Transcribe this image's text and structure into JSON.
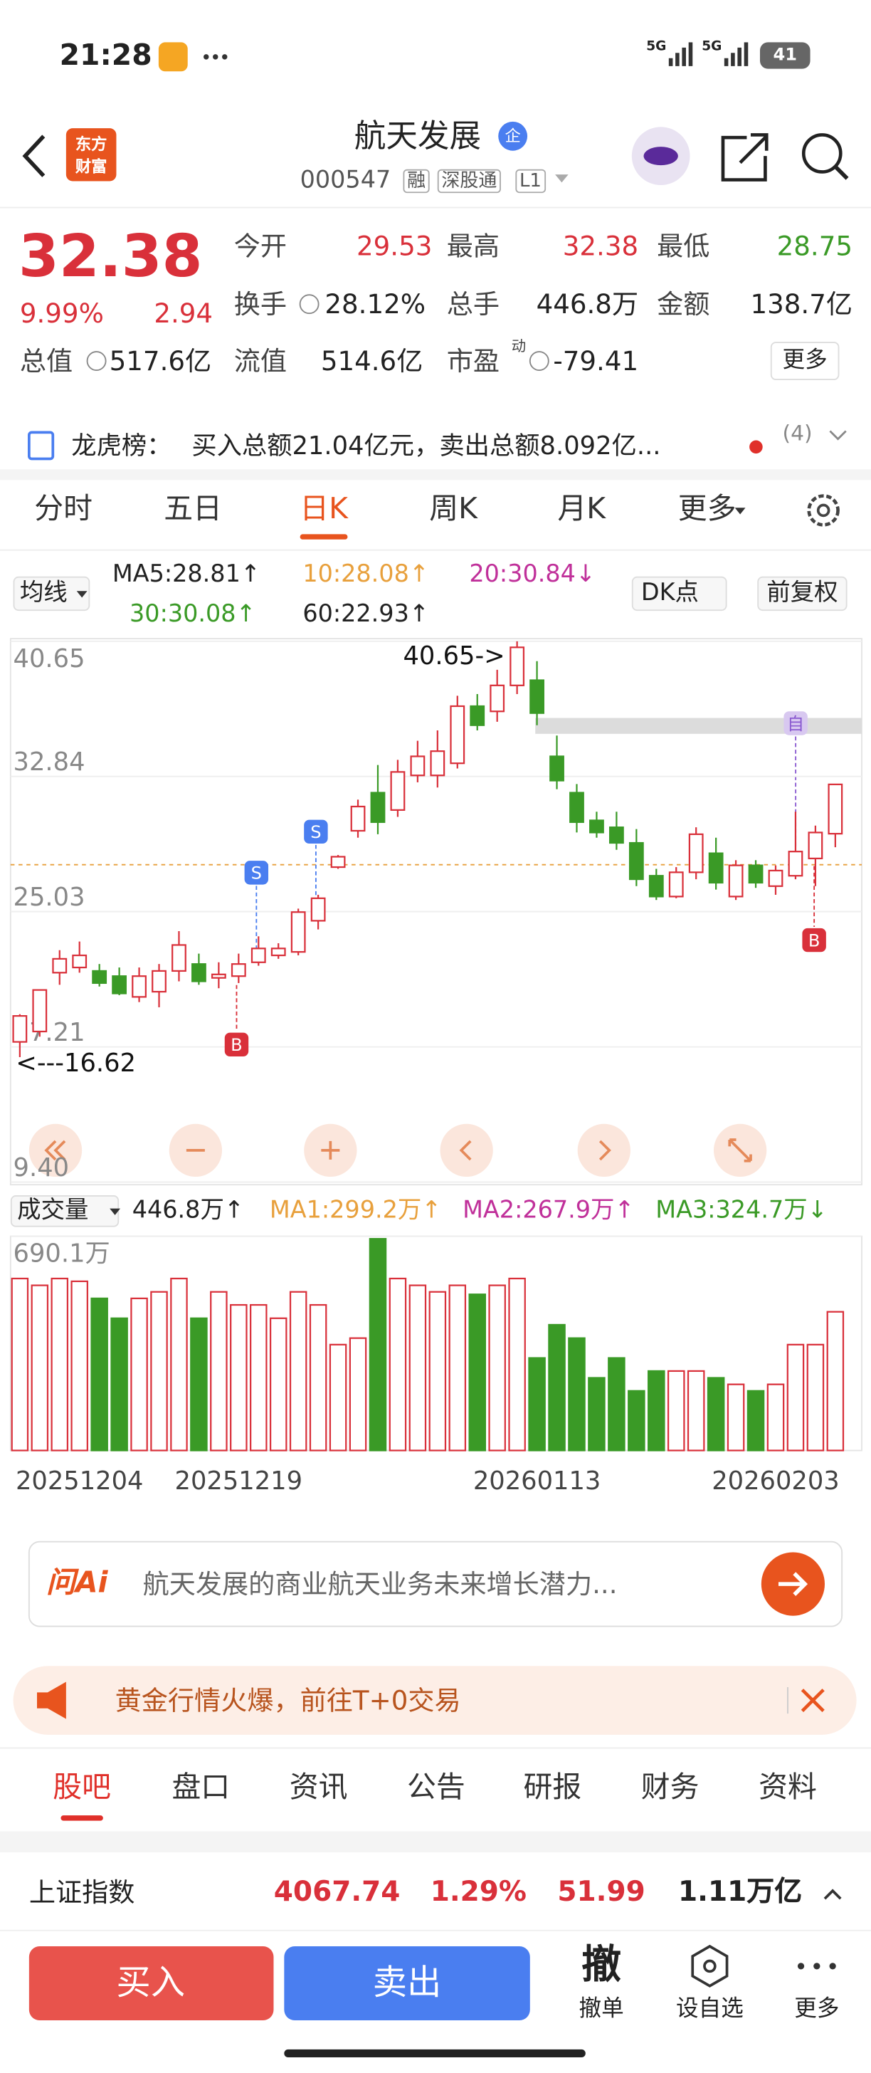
{
  "status_bar": {
    "time": "21:28",
    "network": [
      "5G",
      "5G"
    ],
    "battery": "41"
  },
  "header": {
    "logo": [
      "东方",
      "财富"
    ],
    "title": "航天发展",
    "badge": "企",
    "code": "000547",
    "tags": [
      "融",
      "深股通",
      "L1"
    ]
  },
  "quote": {
    "price": "32.38",
    "change_pct": "9.99%",
    "change": "2.94",
    "fields": [
      [
        "今开",
        "29.53"
      ],
      [
        "最高",
        "32.38"
      ],
      [
        "最低",
        "28.75"
      ],
      [
        "换手",
        "28.12%"
      ],
      [
        "总手",
        "446.8万"
      ],
      [
        "金额",
        "138.7亿"
      ],
      [
        "总值",
        "517.6亿"
      ],
      [
        "流值",
        "514.6亿"
      ],
      [
        "市盈",
        "-79.41"
      ]
    ],
    "pe_superscript": "动",
    "more": "更多"
  },
  "notice": {
    "label": "龙虎榜：",
    "text": "买入总额21.04亿元，卖出总额8.092亿...",
    "count": "(4)"
  },
  "chart_tabs": {
    "items": [
      "分时",
      "五日",
      "日K",
      "周K",
      "月K",
      "更多"
    ],
    "active": 2
  },
  "indicator_bar": {
    "ma_button": "均线",
    "ma": [
      {
        "text": "MA5:28.81↑",
        "color": "#222222"
      },
      {
        "text": "10:28.08↑",
        "color": "#e8a03c"
      },
      {
        "text": "20:30.84↓",
        "color": "#c0309a"
      },
      {
        "text": "30:30.08↑",
        "color": "#3a9a26"
      },
      {
        "text": "60:22.93↑",
        "color": "#222222"
      }
    ],
    "dk": "DK点",
    "adjust": "前复权"
  },
  "volume_bar": {
    "button": "成交量",
    "value": "446.8万↑",
    "ma": [
      {
        "text": "MA1:299.2万↑",
        "color": "#e8a03c"
      },
      {
        "text": "MA2:267.9万↑",
        "color": "#c0309a"
      },
      {
        "text": "MA3:324.7万↓",
        "color": "#3a9a26"
      }
    ]
  },
  "chart_data": [
    {
      "type": "candlestick",
      "open": [
        17.5,
        18.1,
        21.5,
        21.8,
        21.6,
        21.3,
        20.1,
        20.4,
        21.6,
        22.0,
        21.2,
        21.3,
        22.1,
        22.5,
        22.7,
        24.5,
        27.6,
        29.7,
        31.9,
        30.9,
        32.9,
        32.9,
        33.6,
        36.9,
        36.6,
        38.1,
        38.4,
        34.0,
        31.9,
        30.3,
        29.9,
        29.0,
        27.1,
        25.9,
        27.3,
        28.4,
        25.9,
        27.7,
        26.5,
        27.1,
        28.1,
        29.53
      ],
      "close": [
        19.0,
        20.5,
        22.3,
        22.5,
        20.9,
        20.3,
        21.3,
        21.6,
        23.1,
        21.0,
        21.4,
        22.0,
        22.9,
        22.9,
        25.0,
        25.8,
        28.2,
        31.1,
        30.2,
        33.1,
        34.0,
        34.3,
        36.9,
        35.8,
        38.1,
        40.3,
        36.5,
        32.6,
        30.2,
        29.6,
        29.0,
        26.9,
        25.9,
        27.3,
        29.5,
        26.7,
        27.7,
        26.7,
        27.4,
        28.5,
        29.6,
        32.38
      ],
      "high": [
        19.1,
        20.5,
        22.8,
        23.3,
        22.0,
        21.8,
        21.8,
        22.0,
        23.9,
        22.6,
        22.1,
        22.6,
        23.6,
        23.2,
        25.2,
        26.0,
        28.3,
        31.5,
        33.5,
        33.8,
        34.9,
        35.5,
        37.5,
        37.6,
        39.0,
        40.65,
        39.5,
        35.2,
        32.4,
        30.8,
        30.8,
        29.8,
        27.5,
        27.6,
        29.9,
        29.3,
        28.0,
        28.0,
        27.7,
        30.8,
        30.0,
        32.38
      ],
      "low": [
        16.62,
        17.8,
        20.8,
        21.5,
        20.7,
        20.2,
        19.8,
        19.5,
        21.0,
        20.8,
        20.6,
        20.9,
        21.9,
        22.3,
        22.5,
        24.0,
        27.5,
        29.3,
        29.5,
        30.5,
        32.5,
        32.2,
        33.3,
        35.5,
        36.0,
        37.6,
        35.8,
        32.1,
        29.6,
        29.3,
        28.6,
        26.5,
        25.7,
        25.8,
        26.9,
        26.3,
        25.7,
        26.4,
        26.0,
        26.9,
        26.5,
        28.75
      ],
      "ylim": [
        9.4,
        40.65
      ],
      "yticks": [
        40.65,
        32.84,
        25.03,
        17.21,
        {
          "value": 9.4,
          "label": "9.40"
        }
      ],
      "up_color": "#d9303a",
      "down_color": "#3a9a26",
      "grid": true,
      "annotations": [
        "40.65->",
        "<---16.62"
      ],
      "markers": [
        "S",
        "S",
        "B",
        "自",
        "B"
      ]
    },
    {
      "type": "bar",
      "categories": [
        null,
        null,
        null,
        "20251204",
        null,
        null,
        null,
        null,
        null,
        null,
        null,
        "20251219",
        null,
        null,
        null,
        null,
        null,
        null,
        null,
        null,
        null,
        null,
        null,
        null,
        null,
        null,
        "20260113",
        null,
        null,
        null,
        null,
        null,
        null,
        null,
        null,
        null,
        null,
        null,
        "20260203",
        null,
        null,
        null
      ],
      "values": [
        554,
        532,
        554,
        545,
        490,
        426,
        490,
        511,
        554,
        426,
        511,
        469,
        469,
        426,
        511,
        469,
        341,
        362,
        682,
        554,
        532,
        511,
        532,
        503,
        532,
        554,
        298,
        405,
        362,
        234,
        298,
        192,
        256,
        256,
        256,
        234,
        213,
        192,
        213,
        341,
        341,
        446.8
      ],
      "ylim": [
        0,
        690.1
      ],
      "yticks": [
        {
          "value": 690.1,
          "label": "690.1万"
        }
      ]
    }
  ],
  "ask_ai": {
    "logo": "问Ai",
    "placeholder": "航天发展的商业航天业务未来增长潜力..."
  },
  "banner": {
    "text": "黄金行情火爆，前往T+0交易"
  },
  "bottom_tabs": {
    "items": [
      "股吧",
      "盘口",
      "资讯",
      "公告",
      "研报",
      "财务",
      "资料"
    ],
    "active": 0
  },
  "index_bar": {
    "name": "上证指数",
    "value": "4067.74",
    "change_pct": "1.29%",
    "change": "51.99",
    "turnover": "1.11万亿"
  },
  "actions": {
    "buy": "买入",
    "sell": "卖出",
    "cancel_icon": "撤",
    "cancel": "撤单",
    "watch": "设自选",
    "more": "更多"
  }
}
